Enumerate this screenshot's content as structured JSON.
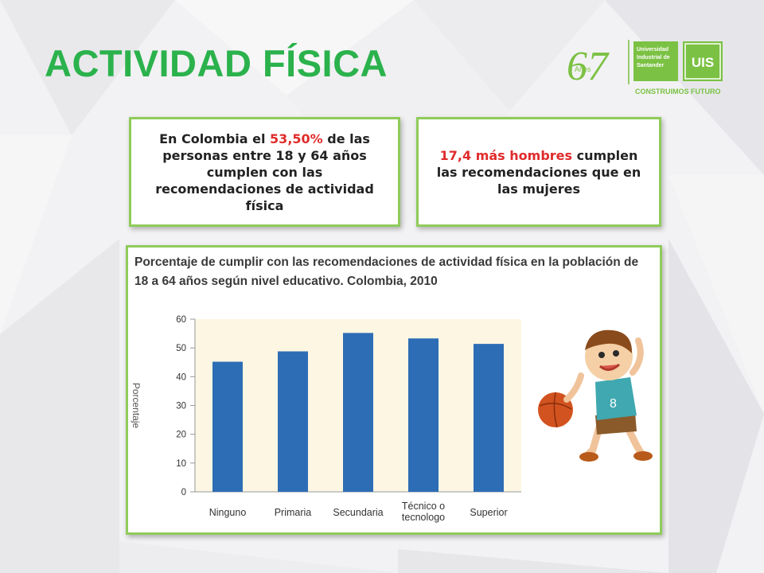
{
  "slide": {
    "title": "ACTIVIDAD FÍSICA",
    "logo": {
      "anniversary_number": "67",
      "anniversary_word": "Años",
      "university_line1": "Universidad",
      "university_line2": "Industrial de",
      "university_line3": "Santander",
      "emblem": "UIS",
      "tagline": "CONSTRUIMOS FUTURO"
    },
    "card1": {
      "text_before": "En Colombia el ",
      "highlight": "53,50%",
      "text_after": " de las personas entre 18 y 64 años cumplen con las recomendaciones de actividad física"
    },
    "card2": {
      "highlight": "17,4 más hombres",
      "text_after": " cumplen las recomendaciones que en las mujeres"
    },
    "chart_title": "Porcentaje de cumplir con las recomendaciones de actividad física en la población de 18 a 64 años según nivel educativo. Colombia, 2010"
  },
  "colors": {
    "title_green": "#2bb24c",
    "card_border": "#8fcb5a",
    "highlight_red": "#e02b2b",
    "bar_blue": "#2d6db5",
    "plot_bg": "#fdf6e3"
  },
  "chart_data": {
    "type": "bar",
    "categories": [
      "Ninguno",
      "Primaria",
      "Secundaria",
      "Técnico o tecnologo",
      "Superior"
    ],
    "category_lines": [
      [
        "Ninguno"
      ],
      [
        "Primaria"
      ],
      [
        "Secundaria"
      ],
      [
        "Técnico o",
        "tecnologo"
      ],
      [
        "Superior"
      ]
    ],
    "values": [
      45.2,
      48.8,
      55.2,
      53.3,
      51.4
    ],
    "ylabel": "Porcentaje",
    "ylim": [
      0,
      60
    ],
    "yticks": [
      0,
      10,
      20,
      30,
      40,
      50,
      60
    ],
    "grid": false
  }
}
